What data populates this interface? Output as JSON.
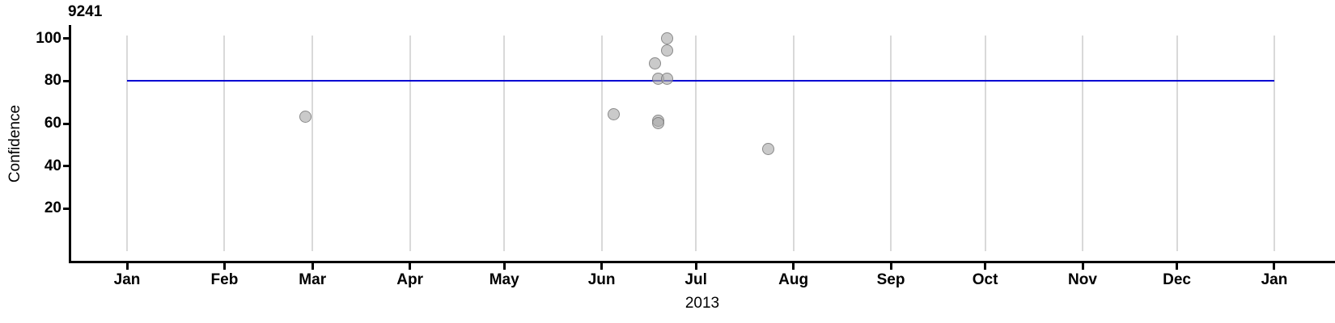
{
  "figure": {
    "title": "9241",
    "ylabel": "Confidence",
    "xlabel": "2013"
  },
  "chart_data": {
    "type": "scatter",
    "title": "9241",
    "xlabel": "2013",
    "ylabel": "Confidence",
    "x_axis": {
      "kind": "time",
      "start": "2013-01-01",
      "end": "2014-01-01",
      "tick_labels": [
        "Jan",
        "Feb",
        "Mar",
        "Apr",
        "May",
        "Jun",
        "Jul",
        "Aug",
        "Sep",
        "Oct",
        "Nov",
        "Dec",
        "Jan"
      ]
    },
    "y_axis": {
      "ticks": [
        20,
        40,
        60,
        80,
        100
      ],
      "range_shown": [
        -5,
        106
      ]
    },
    "grid": "vertical-month-lines-only",
    "legend": "none",
    "reference_line": {
      "y": 80,
      "color": "#0000d2"
    },
    "point_style": {
      "fill": "#c8c8c8",
      "stroke": "#9a9a9a",
      "opacity": "semi-transparent"
    },
    "points": [
      {
        "date": "2013-02-27",
        "confidence": 63
      },
      {
        "date": "2013-06-05",
        "confidence": 64
      },
      {
        "date": "2013-06-18",
        "confidence": 88
      },
      {
        "date": "2013-06-19",
        "confidence": 81
      },
      {
        "date": "2013-06-19",
        "confidence": 61
      },
      {
        "date": "2013-06-19",
        "confidence": 60
      },
      {
        "date": "2013-06-22",
        "confidence": 100
      },
      {
        "date": "2013-06-22",
        "confidence": 94
      },
      {
        "date": "2013-06-22",
        "confidence": 81
      },
      {
        "date": "2013-07-24",
        "confidence": 48
      }
    ]
  }
}
